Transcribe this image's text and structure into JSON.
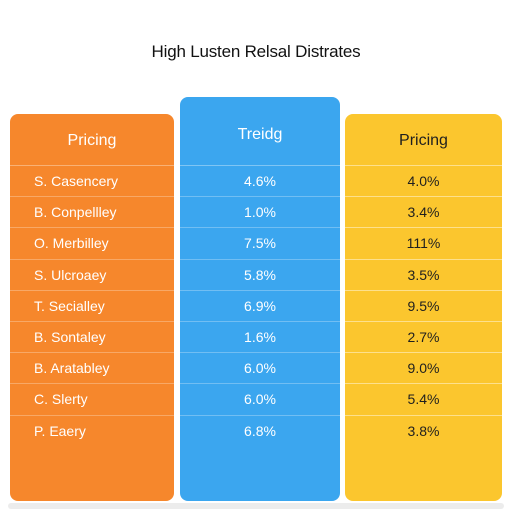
{
  "title": "High Lusten Relsal Distrates",
  "colors": {
    "column_1": "#f6872c",
    "column_2": "#3ba6ef",
    "column_3": "#fbc62e"
  },
  "chart_data": {
    "type": "table",
    "title": "High Lusten Relsal Distrates",
    "columns": [
      "Pricing",
      "Treidg",
      "Pricing"
    ],
    "rows": [
      {
        "label": "S. Casencery",
        "col2": "4.6%",
        "col3": "4.0%"
      },
      {
        "label": "B. Conpellley",
        "col2": "1.0%",
        "col3": "3.4%"
      },
      {
        "label": "O. Merbilley",
        "col2": "7.5%",
        "col3": "111%"
      },
      {
        "label": "S. Ulcroaey",
        "col2": "5.8%",
        "col3": "3.5%"
      },
      {
        "label": "T. Secialley",
        "col2": "6.9%",
        "col3": "9.5%"
      },
      {
        "label": "B. Sontaley",
        "col2": "1.6%",
        "col3": "2.7%"
      },
      {
        "label": "B. Aratabley",
        "col2": "6.0%",
        "col3": "9.0%"
      },
      {
        "label": "C. Slerty",
        "col2": "6.0%",
        "col3": "5.4%"
      },
      {
        "label": "P. Eaery",
        "col2": "6.8%",
        "col3": "3.8%"
      }
    ]
  }
}
